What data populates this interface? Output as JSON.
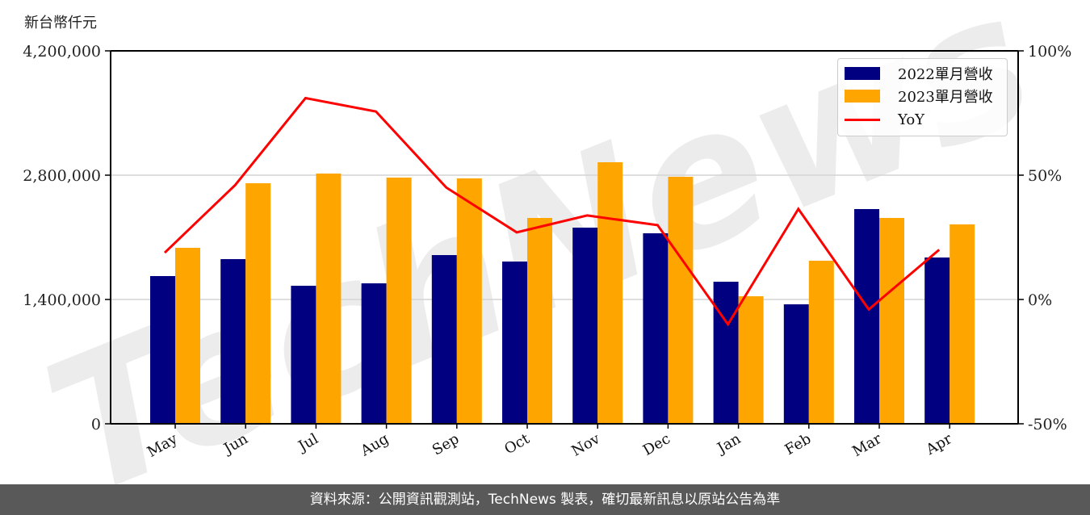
{
  "unit_label": "新台幣仟元",
  "footer": {
    "text": "資料來源：公開資訊觀測站，TechNews 製表，確切最新訊息以原站公告為準"
  },
  "watermark": {
    "text": "TechNews"
  },
  "legend": {
    "items": [
      {
        "label": "2022單月營收",
        "color": "#000080",
        "kind": "bar"
      },
      {
        "label": "2023單月營收",
        "color": "#ffa500",
        "kind": "bar"
      },
      {
        "label": "YoY",
        "color": "#ff0000",
        "kind": "line"
      }
    ]
  },
  "colors": {
    "series_2022": "#000080",
    "series_2023": "#ffa500",
    "yoy": "#ff0000",
    "grid": "#d3d3d3",
    "footer_bg": "#595959"
  },
  "chart_data": {
    "type": "bar",
    "title": "",
    "xlabel": "",
    "ylabel": "新台幣仟元",
    "y2label": "",
    "categories": [
      "May",
      "Jun",
      "Jul",
      "Aug",
      "Sep",
      "Oct",
      "Nov",
      "Dec",
      "Jan",
      "Feb",
      "Mar",
      "Apr"
    ],
    "series": [
      {
        "name": "2022單月營收",
        "type": "bar",
        "axis": "left",
        "values": [
          1663600,
          1854500,
          1554500,
          1581800,
          1900000,
          1827300,
          2209100,
          2145500,
          1600000,
          1345500,
          2418200,
          1872700
        ]
      },
      {
        "name": "2023單月營收",
        "type": "bar",
        "axis": "left",
        "values": [
          1981800,
          2709100,
          2818200,
          2772700,
          2763600,
          2318200,
          2945500,
          2781800,
          1436400,
          1836400,
          2318200,
          2245500
        ]
      },
      {
        "name": "YoY",
        "type": "line",
        "axis": "right",
        "unit": "%",
        "values": [
          18.8,
          46.0,
          81.0,
          75.6,
          45.0,
          27.0,
          33.8,
          29.9,
          -10.0,
          36.4,
          -4.0,
          20.0
        ]
      }
    ],
    "ylim": [
      0,
      4200000
    ],
    "yticks": [
      0,
      1400000,
      2800000,
      4200000
    ],
    "ytick_labels": [
      "0",
      "1,400,000",
      "2,800,000",
      "4,200,000"
    ],
    "y2lim": [
      -50,
      100
    ],
    "y2ticks": [
      -50,
      0,
      50,
      100
    ],
    "y2tick_labels": [
      "-50%",
      "0%",
      "50%",
      "100%"
    ],
    "grid": "horizontal",
    "legend_position": "upper right"
  }
}
